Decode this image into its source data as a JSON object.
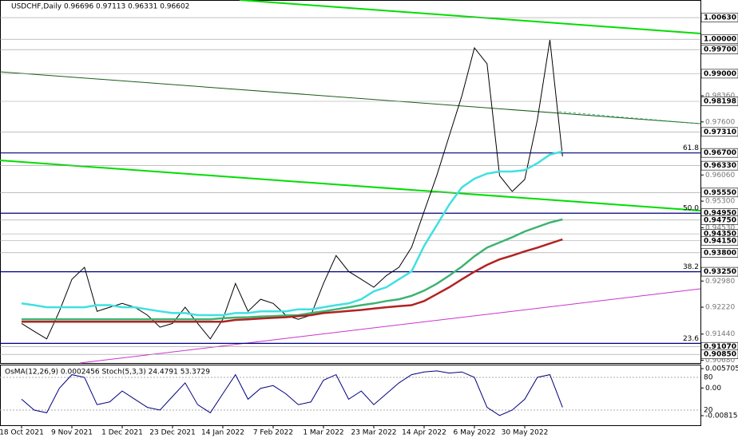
{
  "chart_data": [
    {
      "type": "line",
      "title": "USDCHF,Daily  0.96696 0.97113 0.96331 0.96602",
      "categories": [
        "18 Oct 2021",
        null,
        null,
        null,
        "9 Nov 2021",
        null,
        null,
        null,
        "1 Dec 2021",
        null,
        null,
        null,
        "23 Dec 2021",
        null,
        null,
        null,
        "14 Jan 2022",
        null,
        null,
        null,
        "7 Feb 2022",
        null,
        null,
        null,
        "1 Mar 2022",
        null,
        null,
        null,
        "23 Mar 2022",
        null,
        null,
        null,
        "14 Apr 2022",
        null,
        null,
        null,
        "6 May 2022",
        null,
        null,
        null,
        "30 May 2022",
        null,
        null,
        null
      ],
      "series": [
        {
          "color": "#000000",
          "values": [
            0.9175,
            0.9152,
            0.913,
            0.921,
            0.9303,
            0.9338,
            0.921,
            0.9222,
            0.9233,
            0.9222,
            0.9199,
            0.9164,
            0.9175,
            0.9222,
            0.9175,
            0.913,
            0.9187,
            0.9291,
            0.921,
            0.9245,
            0.9233,
            0.9199,
            0.9187,
            0.9199,
            0.9291,
            0.9372,
            0.9326,
            0.9303,
            0.928,
            0.9314,
            0.9338,
            0.9396,
            0.95,
            0.9604,
            0.972,
            0.9836,
            0.9975,
            0.9929,
            0.9604,
            0.9558,
            0.9593,
            0.9766,
            0.9998,
            0.966
          ]
        },
        {
          "color": "#40e0e0",
          "values": [
            0.9233,
            0.9228,
            0.9222,
            0.9222,
            0.9222,
            0.9222,
            0.9228,
            0.9228,
            0.9222,
            0.9222,
            0.9216,
            0.921,
            0.9205,
            0.9205,
            0.9199,
            0.9199,
            0.9199,
            0.9205,
            0.9205,
            0.921,
            0.921,
            0.921,
            0.9216,
            0.9216,
            0.9222,
            0.9228,
            0.9233,
            0.9245,
            0.9268,
            0.928,
            0.9303,
            0.9326,
            0.94,
            0.946,
            0.952,
            0.957,
            0.9595,
            0.961,
            0.9616,
            0.9616,
            0.962,
            0.964,
            0.9665,
            0.9674
          ]
        },
        {
          "color": "#3cb371",
          "values": [
            0.9187,
            0.9187,
            0.9187,
            0.9187,
            0.9187,
            0.9187,
            0.9187,
            0.9187,
            0.9187,
            0.9187,
            0.9187,
            0.9187,
            0.9187,
            0.9187,
            0.9187,
            0.9187,
            0.919,
            0.9192,
            0.9193,
            0.9195,
            0.9196,
            0.9198,
            0.9199,
            0.9205,
            0.921,
            0.9216,
            0.9222,
            0.9228,
            0.9233,
            0.924,
            0.9245,
            0.9255,
            0.927,
            0.929,
            0.9314,
            0.934,
            0.937,
            0.9395,
            0.941,
            0.9425,
            0.9442,
            0.9455,
            0.9468,
            0.9477
          ]
        },
        {
          "color": "#b22222",
          "values": [
            0.918,
            0.918,
            0.918,
            0.918,
            0.918,
            0.918,
            0.918,
            0.918,
            0.918,
            0.918,
            0.918,
            0.918,
            0.918,
            0.918,
            0.918,
            0.918,
            0.918,
            0.9185,
            0.9187,
            0.9189,
            0.9191,
            0.9193,
            0.9196,
            0.9199,
            0.9205,
            0.9208,
            0.9211,
            0.9214,
            0.9218,
            0.9222,
            0.9225,
            0.9228,
            0.924,
            0.926,
            0.928,
            0.9303,
            0.9325,
            0.9345,
            0.9361,
            0.9372,
            0.9384,
            0.9395,
            0.9407,
            0.9419
          ]
        }
      ],
      "ylim": [
        0.906,
        1.0114
      ],
      "yticks": [
        {
          "value": 0.9836,
          "label": "0.98360"
        },
        {
          "value": 0.976,
          "label": "0.97600"
        },
        {
          "value": 0.9606,
          "label": "0.96060"
        },
        {
          "value": 0.953,
          "label": "0.95300"
        },
        {
          "value": 0.9453,
          "label": "0.94530"
        },
        {
          "value": 0.9298,
          "label": "0.92980"
        },
        {
          "value": 0.9222,
          "label": "0.92220"
        },
        {
          "value": 0.9144,
          "label": "0.91440"
        },
        {
          "value": 0.9068,
          "label": "0.90680"
        }
      ],
      "levels": [
        {
          "value": 1.0063,
          "label": "1.00630"
        },
        {
          "value": 1.0,
          "label": "1.00000"
        },
        {
          "value": 0.997,
          "label": "0.99700"
        },
        {
          "value": 0.99,
          "label": "0.99000"
        },
        {
          "value": 0.98198,
          "label": "0.98198"
        },
        {
          "value": 0.9731,
          "label": "0.97310"
        },
        {
          "value": 0.967,
          "label": "0.96700"
        },
        {
          "value": 0.9633,
          "label": "0.96330"
        },
        {
          "value": 0.9555,
          "label": "0.95550"
        },
        {
          "value": 0.9495,
          "label": "0.94950"
        },
        {
          "value": 0.9475,
          "label": "0.94750"
        },
        {
          "value": 0.9435,
          "label": "0.94350"
        },
        {
          "value": 0.9415,
          "label": "0.94150"
        },
        {
          "value": 0.938,
          "label": "0.93800"
        },
        {
          "value": 0.9325,
          "label": "0.93250"
        },
        {
          "value": 0.9107,
          "label": "0.91070"
        },
        {
          "value": 0.9085,
          "label": "0.90850"
        }
      ],
      "fib_levels": [
        {
          "value": 0.967,
          "label": "61.8"
        },
        {
          "value": 0.9495,
          "label": "50.0"
        },
        {
          "value": 0.9325,
          "label": "38.2"
        },
        {
          "value": 0.9117,
          "label": "23.6"
        }
      ]
    },
    {
      "type": "line",
      "title": "OsMA(12,26,9) 0.0002456 Stoch(5,3,3) 24.4791 53.3729",
      "series": [
        {
          "color": "#000080",
          "values": [
            40,
            20,
            15,
            60,
            85,
            80,
            30,
            35,
            55,
            40,
            25,
            20,
            45,
            70,
            30,
            15,
            50,
            85,
            40,
            60,
            65,
            50,
            30,
            35,
            75,
            85,
            40,
            55,
            30,
            50,
            70,
            85,
            90,
            92,
            88,
            90,
            80,
            25,
            10,
            20,
            40,
            80,
            85,
            25
          ]
        }
      ],
      "ylim": [
        -7.8,
        103.5
      ],
      "yticks": [
        80,
        20
      ],
      "y2lim": [
        -0.01097,
        0.00688
      ],
      "y2ticks": [
        {
          "value": 0.0057055,
          "label": "0.0057055"
        },
        {
          "value": 0,
          "label": "0.00"
        },
        {
          "value": -0.008152,
          "label": "-0.008152"
        }
      ]
    }
  ]
}
